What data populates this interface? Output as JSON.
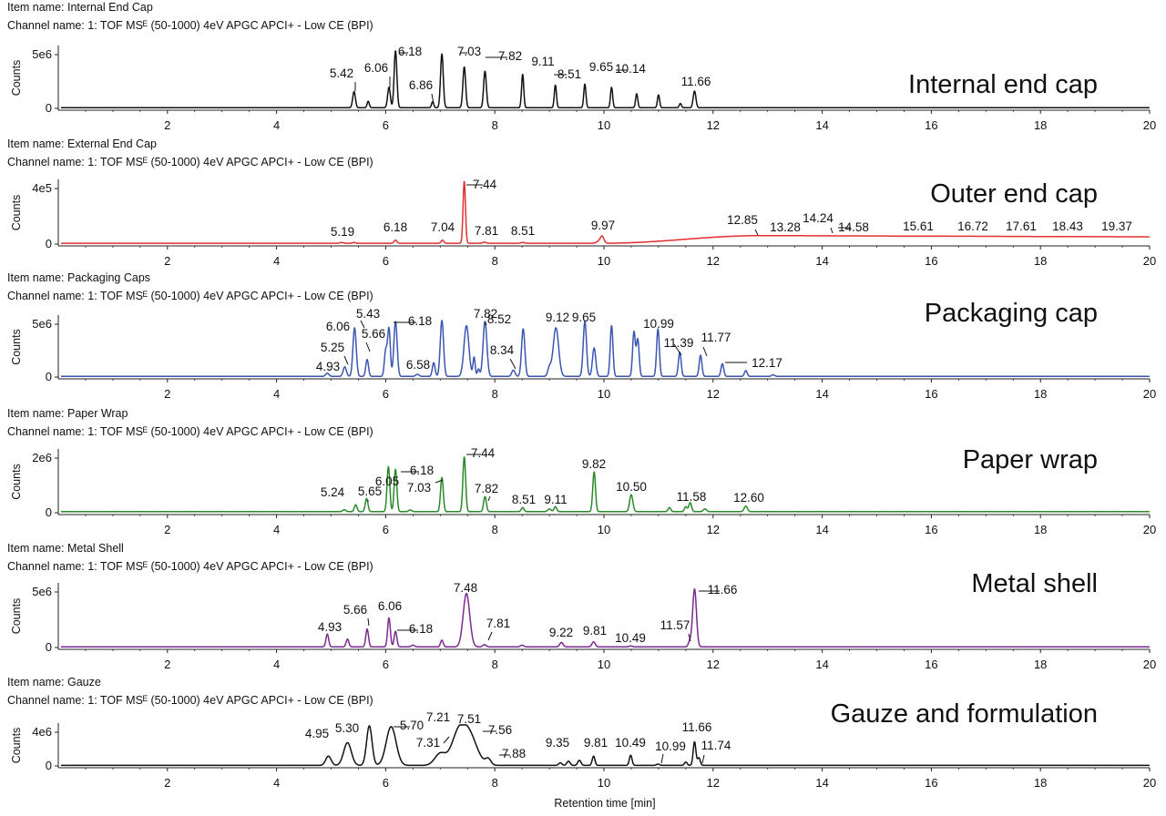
{
  "chart_data": {
    "type": "line",
    "x_axis": {
      "label": "Retention time [min]",
      "range": [
        0,
        20
      ],
      "ticks": [
        2,
        4,
        6,
        8,
        10,
        12,
        14,
        16,
        18,
        20
      ]
    },
    "y_axis_label": "Counts",
    "panels": [
      {
        "item_name": "Item name: Internal End Cap",
        "channel_name": "Channel name: 1: TOF MSᴱ (50-1000) 4eV APGC APCI+ - Low CE (BPI)",
        "sample_label": "Internal end cap",
        "color": "#111111",
        "y_tick_labels": [
          "5e6",
          "0"
        ],
        "y_tick_values": [
          5000000,
          0
        ],
        "ymax": 5700000,
        "baseline": 60000,
        "peaks": [
          [
            5.42,
            1500000,
            0.025
          ],
          [
            5.68,
            600000,
            0.02
          ],
          [
            6.06,
            1900000,
            0.025
          ],
          [
            6.18,
            5300000,
            0.025
          ],
          [
            6.86,
            550000,
            0.02
          ],
          [
            7.03,
            5000000,
            0.025
          ],
          [
            7.44,
            3800000,
            0.025
          ],
          [
            7.82,
            3400000,
            0.025
          ],
          [
            8.51,
            3100000,
            0.02
          ],
          [
            9.11,
            2100000,
            0.02
          ],
          [
            9.65,
            2200000,
            0.02
          ],
          [
            10.14,
            1900000,
            0.02
          ],
          [
            10.6,
            1300000,
            0.02
          ],
          [
            11.0,
            1200000,
            0.02
          ],
          [
            11.4,
            400000,
            0.02
          ],
          [
            11.66,
            1550000,
            0.025
          ]
        ],
        "labels": [
          "5.42",
          "6.06",
          "6.18",
          "6.86",
          "7.03",
          "7.82",
          "9.11",
          "8.51",
          "9.65",
          "10.14",
          "11.66"
        ]
      },
      {
        "item_name": "Item name: External End Cap",
        "channel_name": "Channel name: 1: TOF MSᴱ (50-1000) 4eV APGC APCI+ - Low CE (BPI)",
        "sample_label": "Outer end cap",
        "color": "#e03030",
        "y_tick_labels": [
          "4e5",
          "0"
        ],
        "y_tick_values": [
          400000,
          0
        ],
        "ymax": 460000,
        "baseline": 6000,
        "hump": {
          "start": 10.0,
          "peak": 12.9,
          "end": 20.0,
          "height": 55000,
          "plateau": 46000
        },
        "peaks": [
          [
            5.19,
            6000,
            0.03
          ],
          [
            5.42,
            5000,
            0.03
          ],
          [
            6.18,
            22000,
            0.025
          ],
          [
            7.04,
            22000,
            0.025
          ],
          [
            7.44,
            445000,
            0.022
          ],
          [
            7.81,
            8000,
            0.03
          ],
          [
            8.51,
            6000,
            0.03
          ],
          [
            9.97,
            38000,
            0.03
          ],
          [
            9.93,
            20000,
            0.05
          ]
        ],
        "labels": [
          "5.19",
          "6.18",
          "7.04",
          "7.44",
          "7.81",
          "8.51",
          "9.97",
          "12.85",
          "13.28",
          "14.24",
          "14.58",
          "15.61",
          "16.72",
          "17.61",
          "18.43",
          "19.37"
        ]
      },
      {
        "item_name": "Item name: Packaging Caps",
        "channel_name": "Channel name: 1: TOF MSᴱ (50-1000) 4eV APGC APCI+ - Low CE (BPI)",
        "sample_label": "Packaging cap",
        "color": "#3a56b0",
        "y_tick_labels": [
          "5e6",
          "0"
        ],
        "y_tick_values": [
          5000000,
          0
        ],
        "ymax": 5800000,
        "baseline": 60000,
        "peaks": [
          [
            4.93,
            300000,
            0.03
          ],
          [
            5.25,
            900000,
            0.03
          ],
          [
            5.43,
            4600000,
            0.03
          ],
          [
            5.66,
            1600000,
            0.025
          ],
          [
            6.0,
            2400000,
            0.025
          ],
          [
            6.06,
            4500000,
            0.025
          ],
          [
            6.18,
            5200000,
            0.03
          ],
          [
            6.58,
            200000,
            0.03
          ],
          [
            6.88,
            1300000,
            0.025
          ],
          [
            7.03,
            5300000,
            0.03
          ],
          [
            7.48,
            4800000,
            0.045
          ],
          [
            7.62,
            1800000,
            0.02
          ],
          [
            7.7,
            700000,
            0.02
          ],
          [
            7.82,
            5200000,
            0.035
          ],
          [
            8.34,
            600000,
            0.03
          ],
          [
            8.52,
            4500000,
            0.03
          ],
          [
            9.0,
            800000,
            0.03
          ],
          [
            9.12,
            4600000,
            0.05
          ],
          [
            9.65,
            5200000,
            0.03
          ],
          [
            9.82,
            2700000,
            0.03
          ],
          [
            10.14,
            4800000,
            0.025
          ],
          [
            10.55,
            4200000,
            0.025
          ],
          [
            10.62,
            3500000,
            0.025
          ],
          [
            10.99,
            4500000,
            0.025
          ],
          [
            11.39,
            2300000,
            0.025
          ],
          [
            11.77,
            2000000,
            0.025
          ],
          [
            12.17,
            1200000,
            0.025
          ],
          [
            12.6,
            550000,
            0.025
          ],
          [
            13.1,
            150000,
            0.03
          ]
        ],
        "labels": [
          "4.93",
          "5.25",
          "6.06",
          "5.43",
          "5.66",
          "6.18",
          "6.58",
          "7.82",
          "8.34",
          "8.52",
          "9.12",
          "9.65",
          "10.99",
          "11.39",
          "11.77",
          "12.17"
        ]
      },
      {
        "item_name": "Item name: Paper Wrap",
        "channel_name": "Channel name: 1: TOF MSᴱ (50-1000) 4eV APGC APCI+ - Low CE (BPI)",
        "sample_label": "Paper wrap",
        "color": "#2a8a2a",
        "y_tick_labels": [
          "2e6",
          "0"
        ],
        "y_tick_values": [
          2000000,
          0
        ],
        "ymax": 2250000,
        "baseline": 40000,
        "peaks": [
          [
            5.24,
            70000,
            0.03
          ],
          [
            5.45,
            250000,
            0.025
          ],
          [
            5.65,
            480000,
            0.025
          ],
          [
            6.05,
            1650000,
            0.025
          ],
          [
            6.18,
            1550000,
            0.025
          ],
          [
            6.45,
            60000,
            0.03
          ],
          [
            7.03,
            1250000,
            0.025
          ],
          [
            7.44,
            2000000,
            0.025
          ],
          [
            7.82,
            550000,
            0.025
          ],
          [
            8.51,
            150000,
            0.025
          ],
          [
            9.0,
            100000,
            0.03
          ],
          [
            9.11,
            180000,
            0.025
          ],
          [
            9.82,
            1450000,
            0.025
          ],
          [
            10.5,
            620000,
            0.03
          ],
          [
            11.2,
            150000,
            0.025
          ],
          [
            11.5,
            180000,
            0.025
          ],
          [
            11.58,
            330000,
            0.025
          ],
          [
            11.85,
            100000,
            0.03
          ],
          [
            12.6,
            200000,
            0.03
          ]
        ],
        "labels": [
          "5.24",
          "5.65",
          "6.05",
          "6.18",
          "7.03",
          "7.44",
          "7.82",
          "8.51",
          "9.11",
          "9.82",
          "10.50",
          "11.58",
          "12.60"
        ]
      },
      {
        "item_name": "Item name: Metal Shell",
        "channel_name": "Channel name: 1: TOF MSᴱ (50-1000) 4eV APGC APCI+ - Low CE (BPI)",
        "sample_label": "Metal shell",
        "color": "#7a2a90",
        "y_tick_labels": [
          "5e6",
          "0"
        ],
        "y_tick_values": [
          5000000,
          0
        ],
        "ymax": 5600000,
        "baseline": 60000,
        "peaks": [
          [
            4.93,
            1150000,
            0.025
          ],
          [
            5.3,
            700000,
            0.025
          ],
          [
            5.66,
            1600000,
            0.025
          ],
          [
            6.06,
            2600000,
            0.025
          ],
          [
            6.18,
            1400000,
            0.025
          ],
          [
            6.5,
            150000,
            0.03
          ],
          [
            7.03,
            600000,
            0.025
          ],
          [
            7.48,
            4800000,
            0.06
          ],
          [
            7.81,
            200000,
            0.03
          ],
          [
            8.5,
            150000,
            0.03
          ],
          [
            9.22,
            400000,
            0.03
          ],
          [
            9.81,
            450000,
            0.03
          ],
          [
            10.49,
            80000,
            0.03
          ],
          [
            11.57,
            450000,
            0.025
          ],
          [
            11.66,
            5200000,
            0.035
          ]
        ],
        "labels": [
          "4.93",
          "5.66",
          "6.06",
          "6.18",
          "7.48",
          "7.81",
          "9.22",
          "9.81",
          "10.49",
          "11.57",
          "11.66"
        ]
      },
      {
        "item_name": "Item name: Gauze",
        "channel_name": "Channel name: 1: TOF MSᴱ (50-1000) 4eV APGC APCI+ - Low CE (BPI)",
        "sample_label": "Gauze and formulation",
        "color": "#111111",
        "y_tick_labels": [
          "4e6",
          "0"
        ],
        "y_tick_values": [
          4000000,
          0
        ],
        "ymax": 5000000,
        "baseline": 60000,
        "peaks": [
          [
            4.95,
            1100000,
            0.05
          ],
          [
            5.3,
            2700000,
            0.07
          ],
          [
            5.7,
            4700000,
            0.05
          ],
          [
            6.1,
            4600000,
            0.09
          ],
          [
            7.0,
            1400000,
            0.1
          ],
          [
            7.31,
            2700000,
            0.12
          ],
          [
            7.51,
            3900000,
            0.15
          ],
          [
            7.88,
            700000,
            0.05
          ],
          [
            9.2,
            300000,
            0.03
          ],
          [
            9.35,
            500000,
            0.03
          ],
          [
            9.55,
            600000,
            0.03
          ],
          [
            9.81,
            1100000,
            0.025
          ],
          [
            10.49,
            1200000,
            0.025
          ],
          [
            10.99,
            150000,
            0.03
          ],
          [
            11.5,
            400000,
            0.025
          ],
          [
            11.66,
            2800000,
            0.025
          ],
          [
            11.74,
            900000,
            0.025
          ]
        ],
        "labels": [
          "4.95",
          "5.30",
          "5.70",
          "7.21",
          "7.51",
          "7.31",
          "7.56",
          "7.88",
          "9.35",
          "9.81",
          "10.49",
          "10.99",
          "11.66",
          "11.74"
        ]
      }
    ]
  }
}
